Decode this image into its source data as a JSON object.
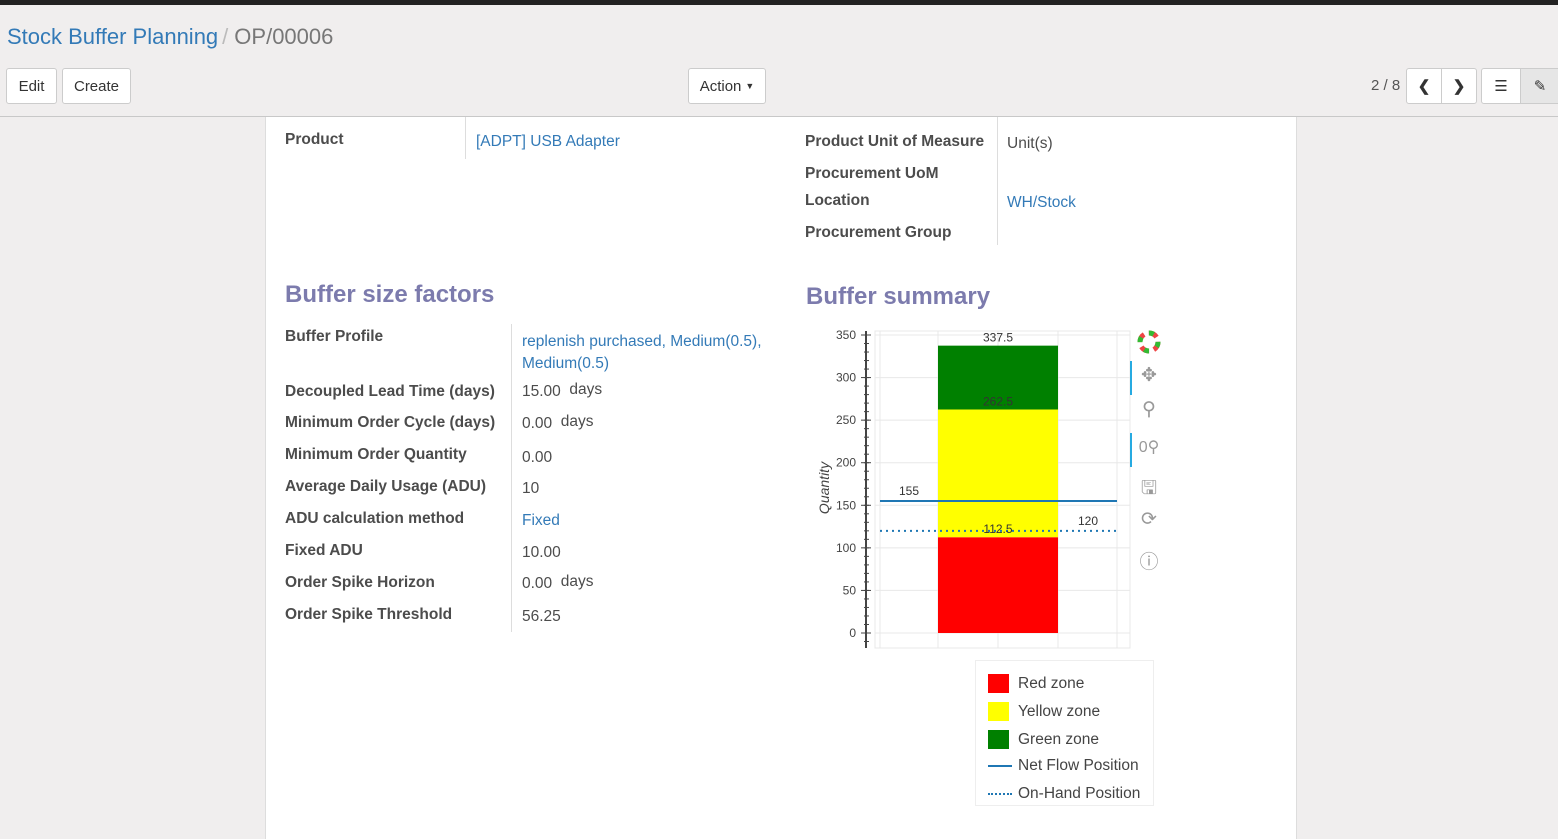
{
  "breadcrumb": {
    "parent": "Stock Buffer Planning",
    "current": "OP/00006"
  },
  "toolbar": {
    "edit": "Edit",
    "create": "Create",
    "action": "Action",
    "pager": "2 / 8"
  },
  "icons": {
    "prev": "chevron-left-icon",
    "next": "chevron-right-icon",
    "list": "list-view-icon",
    "form": "form-view-icon"
  },
  "form": {
    "product_label": "Product",
    "product": "[ADPT] USB Adapter",
    "uom_label": "Product Unit of Measure",
    "uom": "Unit(s)",
    "proc_uom_label": "Procurement UoM",
    "location_label": "Location",
    "location": "WH/Stock",
    "proc_group_label": "Procurement Group"
  },
  "factors": {
    "title": "Buffer size factors",
    "rows": [
      {
        "label": "Buffer Profile",
        "value": "replenish purchased, Medium(0.5),",
        "value2": "Medium(0.5)"
      },
      {
        "label": "Decoupled Lead Time (days)",
        "value": "15.00",
        "unit": "days"
      },
      {
        "label": "Minimum Order Cycle (days)",
        "value": "0.00",
        "unit": "days"
      },
      {
        "label": "Minimum Order Quantity",
        "value": "0.00"
      },
      {
        "label": "Average Daily Usage (ADU)",
        "value": "10"
      },
      {
        "label": "ADU calculation method",
        "value": "Fixed"
      },
      {
        "label": "Fixed ADU",
        "value": "10.00"
      },
      {
        "label": "Order Spike Horizon",
        "value": "0.00",
        "unit": "days"
      },
      {
        "label": "Order Spike Threshold",
        "value": "56.25"
      }
    ]
  },
  "summary": {
    "title": "Buffer summary"
  },
  "chart_data": {
    "type": "bar",
    "ylabel": "Quantity",
    "ylim": [
      0,
      350
    ],
    "yticks": [
      "0",
      "50",
      "100",
      "150",
      "200",
      "250",
      "300",
      "350"
    ],
    "stacked_zones": [
      {
        "name": "Red zone",
        "from": 0,
        "to": 112.5,
        "color": "#ff0000"
      },
      {
        "name": "Yellow zone",
        "from": 112.5,
        "to": 262.5,
        "color": "#ffff00"
      },
      {
        "name": "Green zone",
        "from": 262.5,
        "to": 337.5,
        "color": "#008000"
      }
    ],
    "bar_labels": [
      "112.5",
      "262.5",
      "337.5"
    ],
    "lines": [
      {
        "name": "Net Flow Position",
        "value": 155,
        "label": "155",
        "style": "solid",
        "color": "#1f77b4"
      },
      {
        "name": "On-Hand Position",
        "value": 120,
        "label": "120",
        "style": "dotted",
        "color": "#1f77b4"
      }
    ],
    "grid": true,
    "legend": "bottom"
  },
  "chart_tools": [
    "bokeh-logo-icon",
    "pan-icon",
    "box-zoom-icon",
    "wheel-zoom-icon",
    "save-icon",
    "reset-icon",
    "help-icon"
  ]
}
